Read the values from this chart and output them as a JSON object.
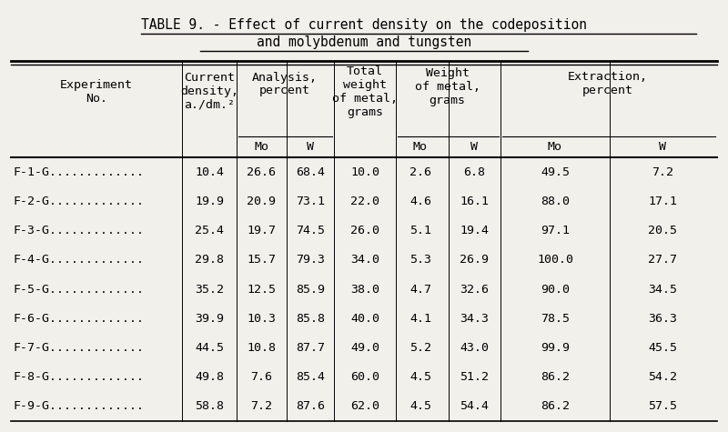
{
  "title_line1": "TABLE 9. - Effect of current density on the codeposition",
  "title_line2": "and molybdenum and tungsten",
  "rows": [
    [
      "F-1-G.............",
      "10.4",
      "26.6",
      "68.4",
      "10.0",
      "2.6",
      "6.8",
      "49.5",
      "7.2"
    ],
    [
      "F-2-G.............",
      "19.9",
      "20.9",
      "73.1",
      "22.0",
      "4.6",
      "16.1",
      "88.0",
      "17.1"
    ],
    [
      "F-3-G.............",
      "25.4",
      "19.7",
      "74.5",
      "26.0",
      "5.1",
      "19.4",
      "97.1",
      "20.5"
    ],
    [
      "F-4-G.............",
      "29.8",
      "15.7",
      "79.3",
      "34.0",
      "5.3",
      "26.9",
      "100.0",
      "27.7"
    ],
    [
      "F-5-G.............",
      "35.2",
      "12.5",
      "85.9",
      "38.0",
      "4.7",
      "32.6",
      "90.0",
      "34.5"
    ],
    [
      "F-6-G.............",
      "39.9",
      "10.3",
      "85.8",
      "40.0",
      "4.1",
      "34.3",
      "78.5",
      "36.3"
    ],
    [
      "F-7-G.............",
      "44.5",
      "10.8",
      "87.7",
      "49.0",
      "5.2",
      "43.0",
      "99.9",
      "45.5"
    ],
    [
      "F-8-G.............",
      "49.8",
      "7.6",
      "85.4",
      "60.0",
      "4.5",
      "51.2",
      "86.2",
      "54.2"
    ],
    [
      "F-9-G.............",
      "58.8",
      "7.2",
      "87.6",
      "62.0",
      "4.5",
      "54.4",
      "86.2",
      "57.5"
    ]
  ],
  "bg_color": "#f2f0eb",
  "font_size": 9.5,
  "title_font_size": 10.5
}
